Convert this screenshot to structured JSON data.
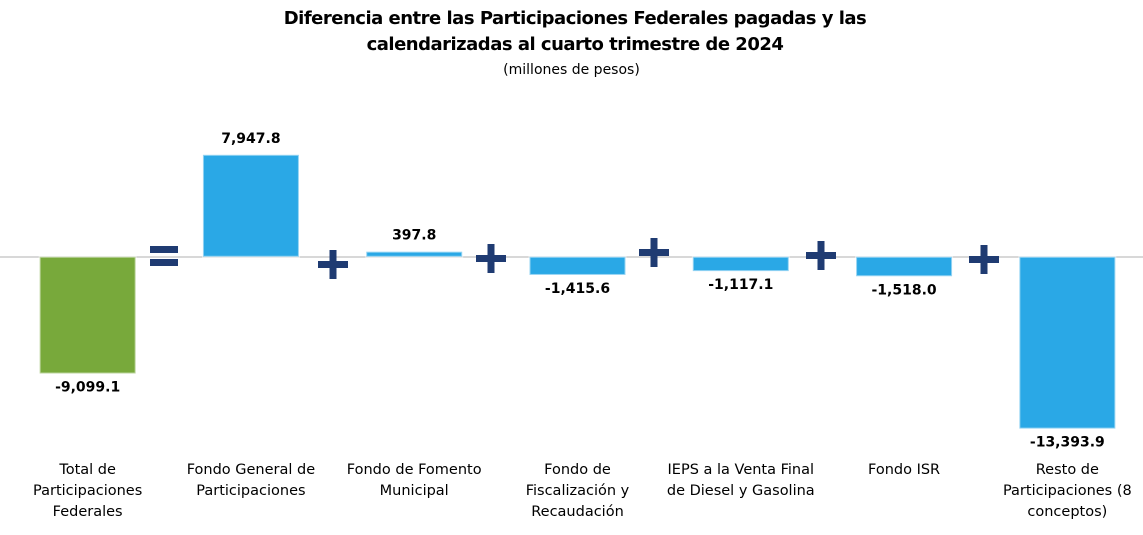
{
  "chart_data": {
    "type": "bar",
    "title": "Diferencia entre las Participaciones Federales pagadas y las calendarizadas al cuarto trimestre de 2024",
    "subtitle": "(millones de pesos)",
    "categories": [
      "Total de Participaciones Federales",
      "Fondo General de Participaciones",
      "Fondo de Fomento Municipal",
      "Fondo de Fiscalización y Recaudación",
      "IEPS a la Venta Final de Diesel y Gasolina",
      "Fondo ISR",
      "Resto de Participaciones (8 conceptos)"
    ],
    "values": [
      -9099.1,
      7947.8,
      397.8,
      -1415.6,
      -1117.1,
      -1518.0,
      -13393.9
    ],
    "value_labels": [
      "-9,099.1",
      "7,947.8",
      "397.8",
      "-1,415.6",
      "-1,117.1",
      "-1,518.0",
      "-13,393.9"
    ],
    "colors": [
      "#78a93b",
      "#2aa8e6",
      "#2aa8e6",
      "#2aa8e6",
      "#2aa8e6",
      "#2aa8e6",
      "#2aa8e6"
    ],
    "ylim": [
      -17400,
      13000
    ]
  }
}
